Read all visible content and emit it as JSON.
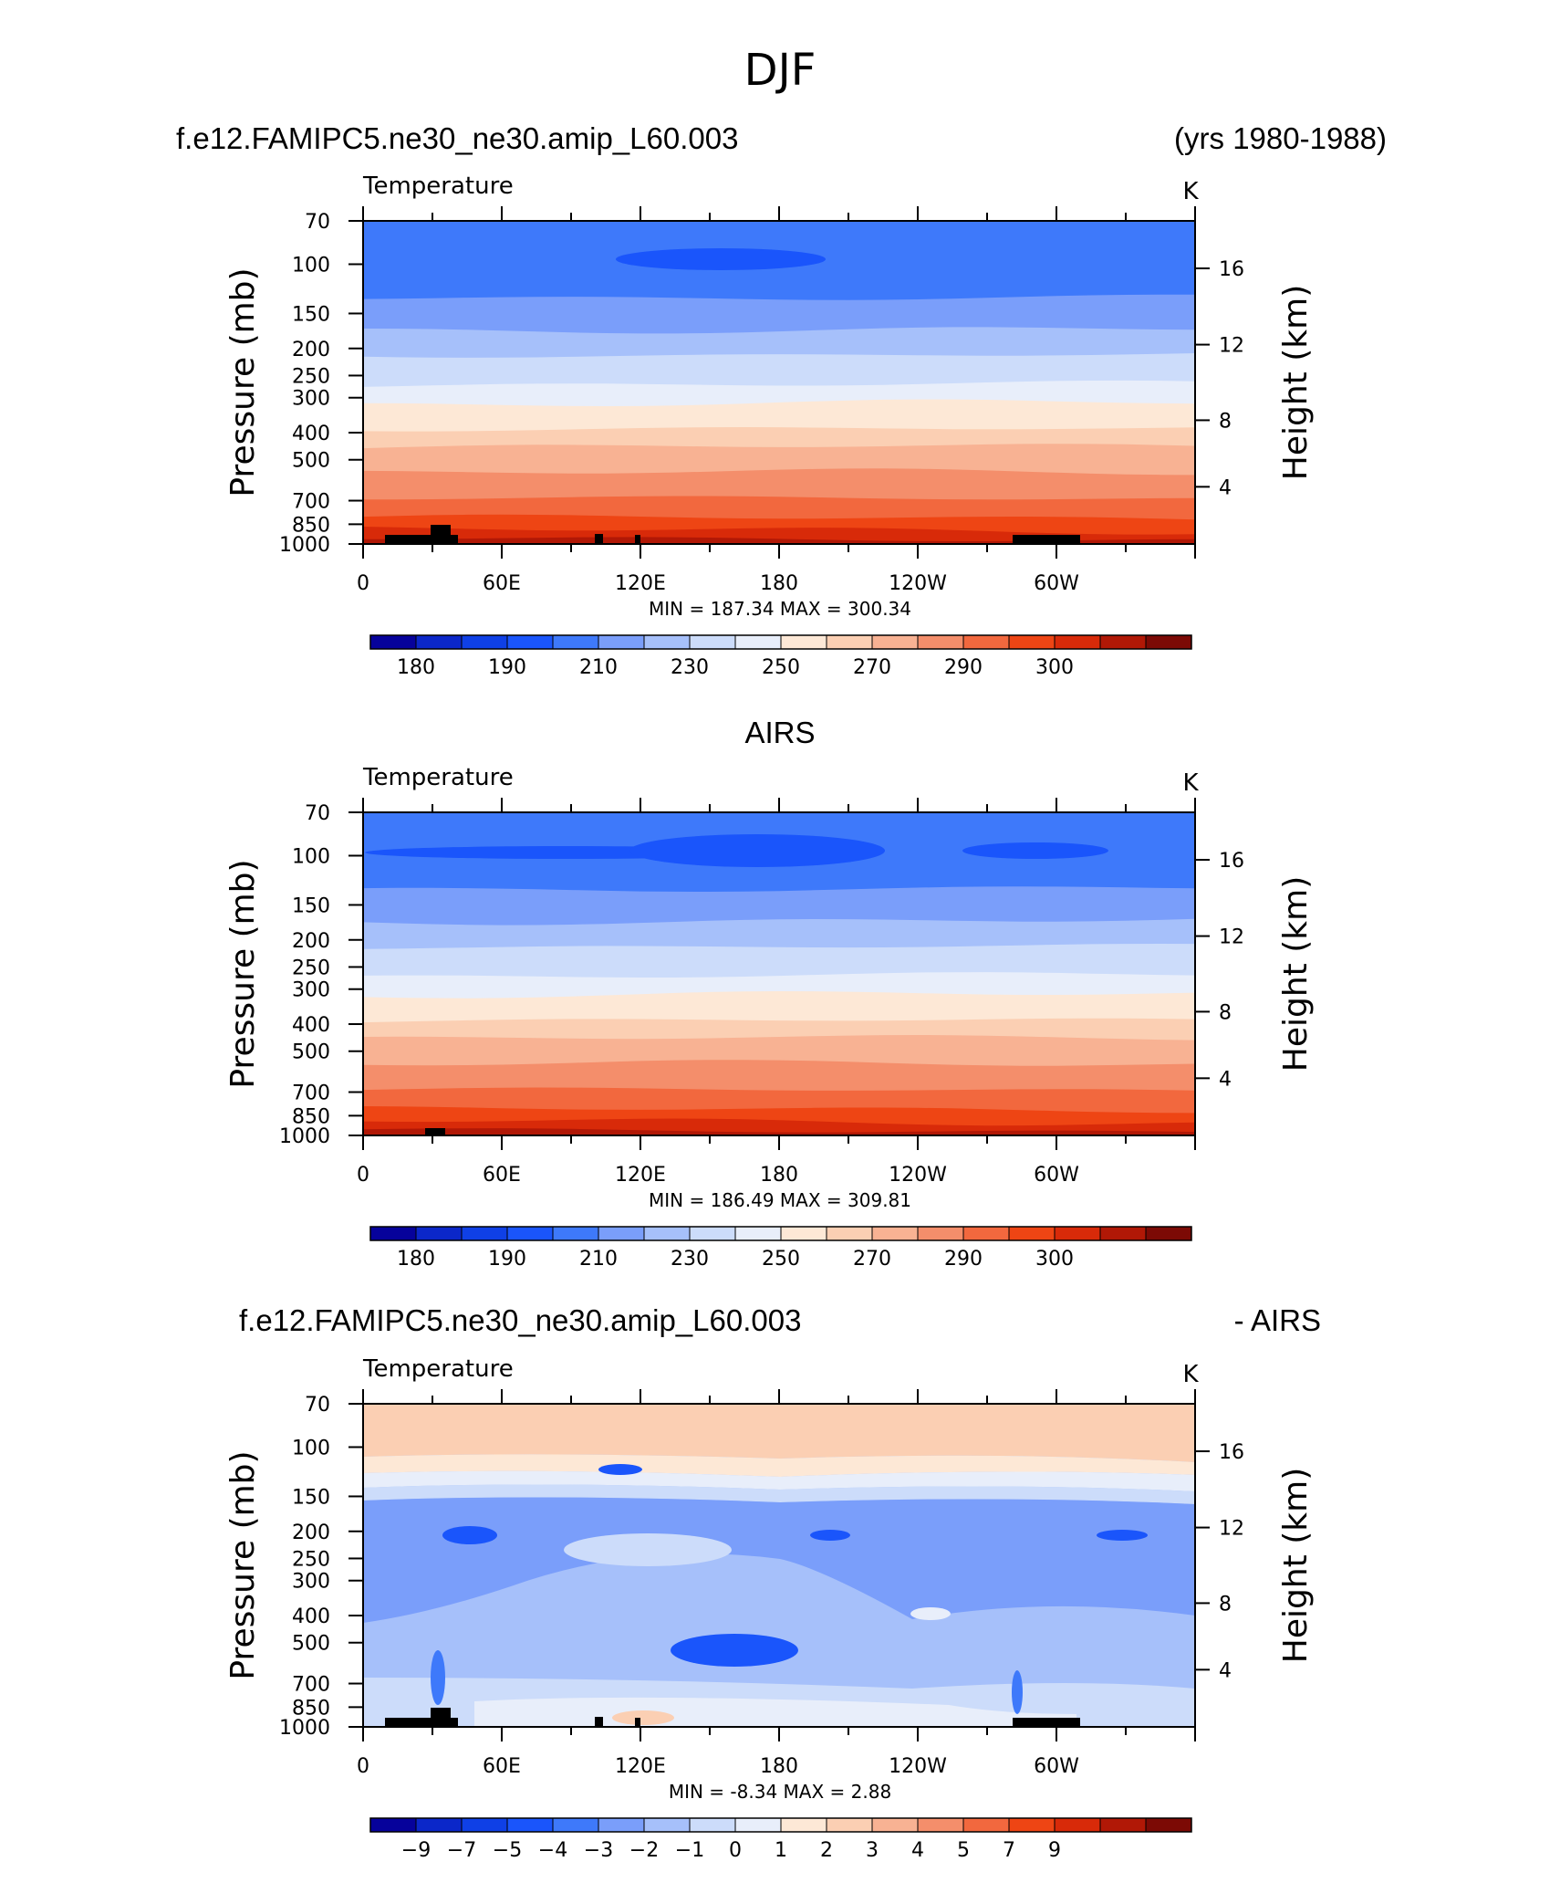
{
  "figure_title": "DJF",
  "chart_data": [
    {
      "type": "heatmap",
      "header_left": "f.e12.FAMIPC5.ne30_ne30.amip_L60.003",
      "header_right": "(yrs 1980-1988)",
      "field": "Temperature",
      "units": "K",
      "ylabel": "Pressure  (mb)",
      "ylabel_right": "Height  (km)",
      "xticks": [
        "0",
        "60E",
        "120E",
        "180",
        "120W",
        "60W"
      ],
      "yticks": [
        "70",
        "100",
        "150",
        "200",
        "250",
        "300",
        "400",
        "500",
        "700",
        "850",
        "1000"
      ],
      "yticks_right": [
        "16",
        "12",
        "8",
        "4"
      ],
      "minmax_text": "MIN =  187.34   MAX =  300.34",
      "min": 187.34,
      "max": 300.34,
      "colorbar_labels": [
        "180",
        "190",
        "210",
        "230",
        "250",
        "270",
        "290",
        "300"
      ]
    },
    {
      "type": "heatmap",
      "header_center": "AIRS",
      "field": "Temperature",
      "units": "K",
      "ylabel": "Pressure  (mb)",
      "ylabel_right": "Height  (km)",
      "xticks": [
        "0",
        "60E",
        "120E",
        "180",
        "120W",
        "60W"
      ],
      "yticks": [
        "70",
        "100",
        "150",
        "200",
        "250",
        "300",
        "400",
        "500",
        "700",
        "850",
        "1000"
      ],
      "yticks_right": [
        "16",
        "12",
        "8",
        "4"
      ],
      "minmax_text": "MIN =  186.49   MAX =  309.81",
      "min": 186.49,
      "max": 309.81,
      "colorbar_labels": [
        "180",
        "190",
        "210",
        "230",
        "250",
        "270",
        "290",
        "300"
      ]
    },
    {
      "type": "heatmap",
      "header_left": "f.e12.FAMIPC5.ne30_ne30.amip_L60.003",
      "header_right": "- AIRS",
      "field": "Temperature",
      "units": "K",
      "ylabel": "Pressure  (mb)",
      "ylabel_right": "Height  (km)",
      "xticks": [
        "0",
        "60E",
        "120E",
        "180",
        "120W",
        "60W"
      ],
      "yticks": [
        "70",
        "100",
        "150",
        "200",
        "250",
        "300",
        "400",
        "500",
        "700",
        "850",
        "1000"
      ],
      "yticks_right": [
        "16",
        "12",
        "8",
        "4"
      ],
      "minmax_text": "MIN =    -8.34   MAX =     2.88",
      "min": -8.34,
      "max": 2.88,
      "colorbar_labels": [
        "−9",
        "−7",
        "−5",
        "−4",
        "−3",
        "−2",
        "−1",
        "0",
        "1",
        "2",
        "3",
        "4",
        "5",
        "7",
        "9"
      ]
    }
  ],
  "colorbar_colors": [
    "#06029b",
    "#0b27c9",
    "#0f40e6",
    "#1a55fb",
    "#3e79fa",
    "#7a9efa",
    "#a6c0fa",
    "#ccdcfa",
    "#e8eefa",
    "#fde8d6",
    "#fbcfb3",
    "#f8b293",
    "#f48e6b",
    "#f2683e",
    "#ee4514",
    "#d82a09",
    "#b11806",
    "#7c0a05"
  ]
}
